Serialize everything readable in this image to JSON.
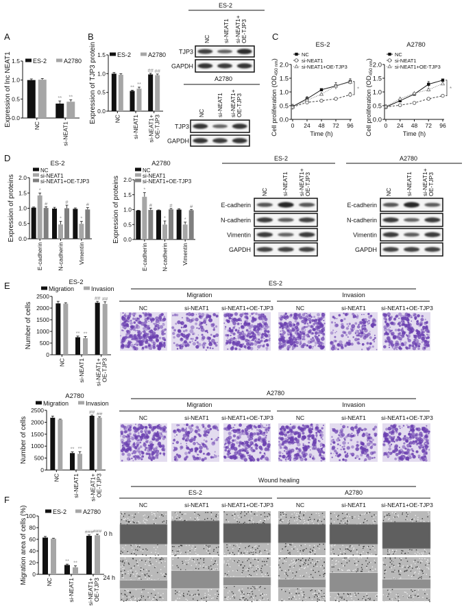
{
  "panel_labels": [
    "A",
    "B",
    "C",
    "D",
    "E",
    "F"
  ],
  "colors": {
    "black": "#111111",
    "light_gray": "#a6a6a6",
    "mid_gray": "#7f7f7f",
    "annotation": "#8a8a8a",
    "crystal_violet": "#6a3fb0"
  },
  "blots_b": [
    {
      "title": "ES-2",
      "columns": [
        "NC",
        "si-NEAT1",
        "si-NEAT1+OE-TJP3"
      ],
      "rows": [
        "TJP3",
        "GAPDH"
      ]
    },
    {
      "title": "A2780",
      "columns": [
        "NC",
        "si-NEAT1",
        "si-NEAT1+OE-TJP3"
      ],
      "rows": [
        "TJP3",
        "GAPDH"
      ]
    }
  ],
  "blots_d": [
    {
      "title": "ES-2",
      "columns": [
        "NC",
        "si-NEAT1",
        "si-NEAT1+OE-TJP3"
      ],
      "rows": [
        "E-cadherin",
        "N-cadherin",
        "Vimentin",
        "GAPDH"
      ]
    },
    {
      "title": "A2780",
      "columns": [
        "NC",
        "si-NEAT1",
        "si-NEAT1+OE-TJP3"
      ],
      "rows": [
        "E-cadherin",
        "N-cadherin",
        "Vimentin",
        "GAPDH"
      ]
    }
  ],
  "transwell": [
    {
      "title": "ES-2",
      "sections": [
        "Migration",
        "Invasion"
      ],
      "columns": [
        "NC",
        "si-NEAT1",
        "si-NEAT1+OE-TJP3",
        "NC",
        "si-NEAT1",
        "si-NEAT1+OE-TJP3"
      ]
    },
    {
      "title": "A2780",
      "sections": [
        "Migration",
        "Invasion"
      ],
      "columns": [
        "NC",
        "si-NEAT1",
        "si-NEAT1+OE-TJP3",
        "NC",
        "si-NEAT1",
        "si-NEAT1+OE-TJP3"
      ]
    }
  ],
  "wound": {
    "title": "Wound healing",
    "sections": [
      "ES-2",
      "A2780"
    ],
    "columns": [
      "NC",
      "si-NEAT1",
      "si-NEAT1+OE-TJP3",
      "NC",
      "si-NEAT1",
      "si-NEAT1+OE-TJP3"
    ],
    "rows": [
      "0 h",
      "24 h"
    ]
  },
  "chart_data": [
    {
      "id": "A",
      "type": "bar",
      "title": "",
      "ylabel": "Expression of lnc NEAT1",
      "ylim": [
        0,
        1.5
      ],
      "yticks": [
        "0.0",
        "0.5",
        "1.0",
        "1.5"
      ],
      "categories": [
        "NC",
        "si-NEAT1"
      ],
      "legend": "top",
      "series": [
        {
          "name": "ES-2",
          "color": "#111111",
          "values": [
            1.0,
            0.38
          ],
          "errors": [
            0.03,
            0.07
          ],
          "marks": [
            "",
            "**"
          ]
        },
        {
          "name": "A2780",
          "color": "#a6a6a6",
          "values": [
            1.01,
            0.43
          ],
          "errors": [
            0.03,
            0.05
          ],
          "marks": [
            "",
            "**"
          ]
        }
      ]
    },
    {
      "id": "B",
      "type": "bar",
      "title": "",
      "ylabel": "Expression of TJP3 protein",
      "ylim": [
        0,
        1.5
      ],
      "yticks": [
        "0.0",
        "0.5",
        "1.0",
        "1.5"
      ],
      "categories": [
        "NC",
        "si-NEAT1",
        "si-NEAT1+OE-TJP3"
      ],
      "legend": "top",
      "series": [
        {
          "name": "ES-2",
          "color": "#111111",
          "values": [
            1.0,
            0.54,
            0.98
          ],
          "errors": [
            0.03,
            0.02,
            0.03
          ],
          "marks": [
            "",
            "**",
            "##"
          ]
        },
        {
          "name": "A2780",
          "color": "#a6a6a6",
          "values": [
            0.97,
            0.6,
            0.96
          ],
          "errors": [
            0.03,
            0.04,
            0.03
          ],
          "marks": [
            "",
            "**",
            "##"
          ]
        }
      ]
    },
    {
      "id": "C-ES-2",
      "type": "line",
      "title": "ES-2",
      "ylabel": "Cell proliferation (OD",
      "ylabel_sub": "450 nm",
      "ylabel_end": ")",
      "xlabel": "Time (h)",
      "xlim": [
        0,
        96
      ],
      "xticks": [
        "0",
        "24",
        "48",
        "72",
        "96"
      ],
      "ylim": [
        0,
        2.0
      ],
      "yticks": [
        "0.0",
        "0.5",
        "1.0",
        "1.5",
        "2.0"
      ],
      "legend": "top-left",
      "annotation": "*",
      "x": [
        0,
        24,
        48,
        72,
        96
      ],
      "series": [
        {
          "name": "NC",
          "marker": "filled-square",
          "line": "solid",
          "values": [
            0.47,
            0.75,
            1.08,
            1.22,
            1.38
          ],
          "errors": [
            0.05,
            0.08,
            0.03,
            0.12,
            0.1
          ]
        },
        {
          "name": "si-NEAT1",
          "marker": "open-circle",
          "line": "dashed",
          "values": [
            0.45,
            0.62,
            0.68,
            0.75,
            0.9
          ],
          "errors": [
            0.1,
            0.06,
            0.03,
            0.04,
            0.08
          ]
        },
        {
          "name": "si-NEAT1+OE-TJP3",
          "marker": "open-triangle",
          "line": "dotted",
          "values": [
            0.45,
            0.7,
            0.92,
            1.22,
            1.36
          ],
          "errors": [
            0.05,
            0.05,
            0.03,
            0.05,
            0.05
          ]
        }
      ]
    },
    {
      "id": "C-A2780",
      "type": "line",
      "title": "A2780",
      "ylabel": "Cell proliferation (OD",
      "ylabel_sub": "450 nm",
      "ylabel_end": ")",
      "xlabel": "Time (h)",
      "xlim": [
        0,
        96
      ],
      "xticks": [
        "0",
        "24",
        "48",
        "72",
        "96"
      ],
      "ylim": [
        0,
        2.0
      ],
      "yticks": [
        "0.0",
        "0.5",
        "1.0",
        "1.5",
        "2.0"
      ],
      "legend": "top-left",
      "annotation": "*",
      "x": [
        0,
        24,
        48,
        72,
        96
      ],
      "series": [
        {
          "name": "NC",
          "marker": "filled-square",
          "line": "solid",
          "values": [
            0.45,
            0.68,
            0.92,
            1.28,
            1.43
          ],
          "errors": [
            0.05,
            0.03,
            0.04,
            0.1,
            0.04
          ]
        },
        {
          "name": "si-NEAT1",
          "marker": "open-circle",
          "line": "dashed",
          "values": [
            0.45,
            0.52,
            0.6,
            0.75,
            0.86
          ],
          "errors": [
            0.08,
            0.03,
            0.02,
            0.04,
            0.04
          ]
        },
        {
          "name": "si-NEAT1+OE-TJP3",
          "marker": "open-triangle",
          "line": "dotted",
          "values": [
            0.47,
            0.75,
            0.95,
            1.08,
            1.3
          ],
          "errors": [
            0.04,
            0.03,
            0.03,
            0.06,
            0.05
          ]
        }
      ]
    },
    {
      "id": "D-ES-2",
      "type": "bar",
      "title": "ES-2",
      "ylabel": "Expression of proteins",
      "ylim": [
        0,
        2.0
      ],
      "yticks": [
        "0.0",
        "0.5",
        "1.0",
        "1.5",
        "2.0"
      ],
      "categories": [
        "E-cadherin",
        "N-cadherin",
        "Vimentin"
      ],
      "legend": "top-left",
      "series": [
        {
          "name": "NC",
          "color": "#111111",
          "values": [
            1.02,
            0.99,
            0.98
          ],
          "errors": [
            0.02,
            0.04,
            0.03
          ],
          "marks": [
            "",
            "",
            ""
          ]
        },
        {
          "name": "si-NEAT1",
          "color": "#a6a6a6",
          "values": [
            1.42,
            0.47,
            0.49
          ],
          "errors": [
            0.08,
            0.1,
            0.08
          ],
          "marks": [
            "*",
            "*",
            "*"
          ]
        },
        {
          "name": "si-NEAT1+OE-TJP3",
          "color": "#7f7f7f",
          "values": [
            1.01,
            1.0,
            0.96
          ],
          "errors": [
            0.04,
            0.1,
            0.06
          ],
          "marks": [
            "#",
            "#",
            "#"
          ]
        }
      ]
    },
    {
      "id": "D-A2780",
      "type": "bar",
      "title": "A2780",
      "ylabel": "Expression of proteins",
      "ylim": [
        0,
        2.0
      ],
      "yticks": [
        "0.0",
        "0.5",
        "1.0",
        "1.5",
        "2.0"
      ],
      "categories": [
        "E-cadherin",
        "N-cadherin",
        "Vimentin"
      ],
      "legend": "top-left",
      "series": [
        {
          "name": "NC",
          "color": "#111111",
          "values": [
            0.97,
            0.98,
            1.0
          ],
          "errors": [
            0.01,
            0.01,
            0.03
          ],
          "marks": [
            "",
            "",
            ""
          ]
        },
        {
          "name": "si-NEAT1",
          "color": "#a6a6a6",
          "values": [
            1.43,
            0.5,
            0.5
          ],
          "errors": [
            0.14,
            0.12,
            0.08
          ],
          "marks": [
            "*",
            "*",
            "*"
          ]
        },
        {
          "name": "si-NEAT1+OE-TJP3",
          "color": "#7f7f7f",
          "values": [
            0.99,
            1.01,
            0.98
          ],
          "errors": [
            0.06,
            0.03,
            0.02
          ],
          "marks": [
            "#",
            "#",
            "#"
          ]
        }
      ]
    },
    {
      "id": "E-ES-2",
      "type": "bar",
      "title": "ES-2",
      "ylabel": "Number of cells",
      "ylim": [
        0,
        2500
      ],
      "yticks": [
        "0",
        "500",
        "1000",
        "1500",
        "2000",
        "2500"
      ],
      "categories": [
        "NC",
        "si-NEAT1",
        "si-NEAT1+OE-TJP3"
      ],
      "legend": "top",
      "series": [
        {
          "name": "Migration",
          "color": "#111111",
          "values": [
            2200,
            750,
            2230
          ],
          "errors": [
            90,
            50,
            60
          ],
          "marks": [
            "",
            "**",
            "##"
          ]
        },
        {
          "name": "Invasion",
          "color": "#a6a6a6",
          "values": [
            2190,
            710,
            2180
          ],
          "errors": [
            40,
            70,
            90
          ],
          "marks": [
            "",
            "**",
            "##"
          ]
        }
      ]
    },
    {
      "id": "E-A2780",
      "type": "bar",
      "title": "A2780",
      "ylabel": "Number of cells",
      "ylim": [
        0,
        2500
      ],
      "yticks": [
        "0",
        "500",
        "1000",
        "1500",
        "2000",
        "2500"
      ],
      "categories": [
        "NC",
        "si-NEAT1",
        "si-NEAT1+OE-TJP3"
      ],
      "legend": "top",
      "series": [
        {
          "name": "Migration",
          "color": "#111111",
          "values": [
            2190,
            710,
            2270
          ],
          "errors": [
            70,
            50,
            30
          ],
          "marks": [
            "",
            "**",
            "##"
          ]
        },
        {
          "name": "Invasion",
          "color": "#a6a6a6",
          "values": [
            2110,
            680,
            2190
          ],
          "errors": [
            20,
            90,
            40
          ],
          "marks": [
            "",
            "**",
            "##"
          ]
        }
      ]
    },
    {
      "id": "F",
      "type": "bar",
      "title": "",
      "ylabel": "Migration area of cells (%)",
      "ylim": [
        0,
        100
      ],
      "yticks": [
        "0",
        "20",
        "40",
        "60",
        "80",
        "100"
      ],
      "categories": [
        "NC",
        "si-NEAT1",
        "si-NEAT1+OE-TJP3"
      ],
      "legend": "top",
      "series": [
        {
          "name": "ES-2",
          "color": "#111111",
          "values": [
            63,
            16,
            66
          ],
          "errors": [
            2,
            1.5,
            1.5
          ],
          "marks": [
            "",
            "**",
            "###"
          ]
        },
        {
          "name": "A2780",
          "color": "#a6a6a6",
          "values": [
            61,
            12,
            67
          ],
          "errors": [
            1,
            2.5,
            2
          ],
          "marks": [
            "",
            "**",
            "###"
          ]
        }
      ]
    }
  ]
}
